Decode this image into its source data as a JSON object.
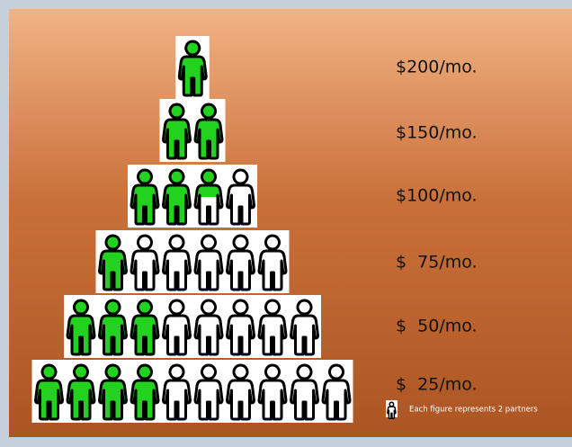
{
  "tiers": [
    {
      "label": "$200/mo.",
      "figures": 1,
      "filled": 1
    },
    {
      "label": "$150/mo.",
      "figures": 2,
      "filled": 2
    },
    {
      "label": "$100/mo.",
      "figures": 4,
      "filled": 2.5
    },
    {
      "label": "$  75/mo.",
      "figures": 6,
      "filled": 1
    },
    {
      "label": "$  50/mo.",
      "figures": 8,
      "filled": 3
    },
    {
      "label": "$  25/mo.",
      "figures": 10,
      "filled": 4
    }
  ],
  "legend": {
    "text": "Each figure represents 2 partners"
  }
}
